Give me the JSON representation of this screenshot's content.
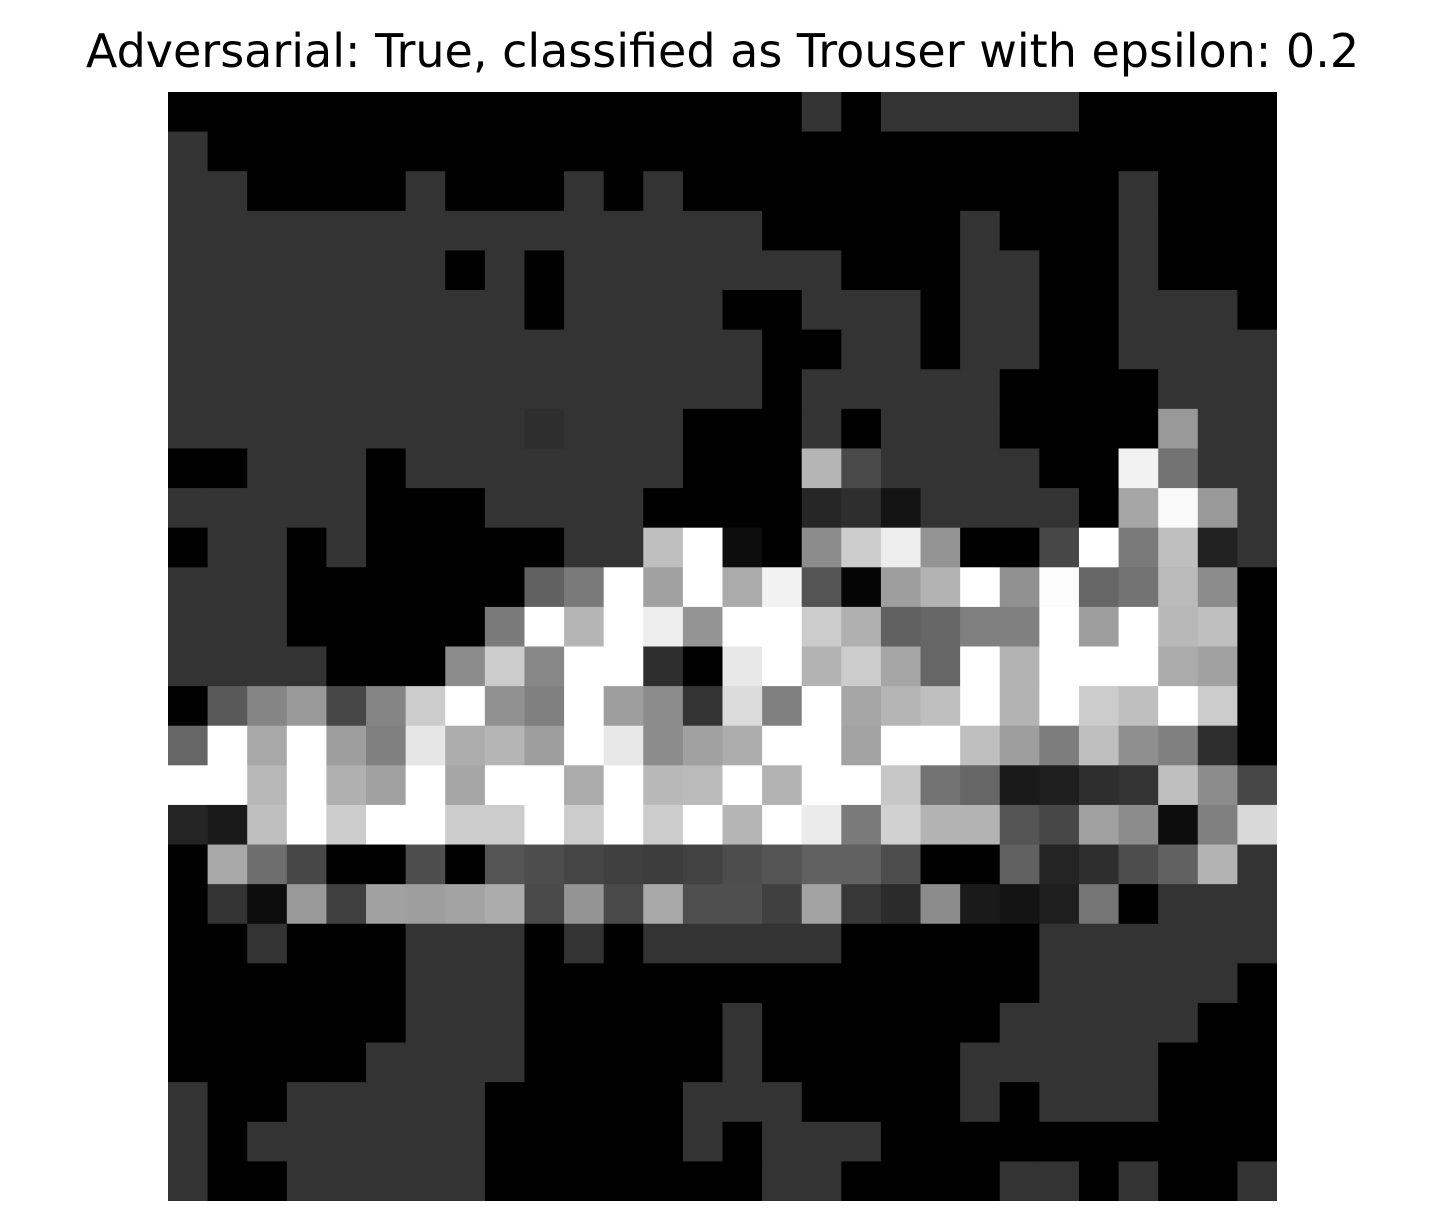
{
  "chart_data": {
    "type": "heatmap",
    "title": "Adversarial: True, classified as Trouser with epsilon: 0.2",
    "colormap": "gray",
    "value_range": [
      0,
      1
    ],
    "axes_visible": false,
    "rows": 28,
    "cols": 28,
    "values": [
      [
        0,
        0,
        0,
        0,
        0,
        0,
        0,
        0,
        0,
        0,
        0,
        0,
        0,
        0,
        0,
        0,
        0.2,
        0,
        0.2,
        0.2,
        0.2,
        0.2,
        0.2,
        0,
        0,
        0,
        0,
        0
      ],
      [
        0.2,
        0,
        0,
        0,
        0,
        0,
        0,
        0,
        0,
        0,
        0,
        0,
        0,
        0,
        0,
        0,
        0,
        0,
        0,
        0,
        0,
        0,
        0,
        0,
        0,
        0,
        0,
        0
      ],
      [
        0.2,
        0.2,
        0,
        0,
        0,
        0,
        0.2,
        0,
        0,
        0,
        0.2,
        0,
        0.2,
        0,
        0,
        0,
        0,
        0,
        0,
        0,
        0,
        0,
        0,
        0,
        0.2,
        0,
        0,
        0
      ],
      [
        0.2,
        0.2,
        0.2,
        0.2,
        0.2,
        0.2,
        0.2,
        0.2,
        0.2,
        0.2,
        0.2,
        0.2,
        0.2,
        0.2,
        0.2,
        0,
        0,
        0,
        0,
        0,
        0.2,
        0,
        0,
        0,
        0.2,
        0,
        0,
        0
      ],
      [
        0.2,
        0.2,
        0.2,
        0.2,
        0.2,
        0.2,
        0.2,
        0,
        0.2,
        0,
        0.2,
        0.2,
        0.2,
        0.2,
        0.2,
        0.2,
        0.2,
        0,
        0,
        0,
        0.2,
        0.2,
        0,
        0,
        0.2,
        0,
        0,
        0
      ],
      [
        0.2,
        0.2,
        0.2,
        0.2,
        0.2,
        0.2,
        0.2,
        0.2,
        0.2,
        0,
        0.2,
        0.2,
        0.2,
        0.2,
        0,
        0,
        0.2,
        0.2,
        0.2,
        0,
        0.2,
        0.2,
        0,
        0,
        0.2,
        0.2,
        0.2,
        0
      ],
      [
        0.2,
        0.2,
        0.2,
        0.2,
        0.2,
        0.2,
        0.2,
        0.2,
        0.2,
        0.2,
        0.2,
        0.2,
        0.2,
        0.2,
        0.2,
        0,
        0,
        0.2,
        0.2,
        0,
        0.2,
        0.2,
        0,
        0,
        0.2,
        0.2,
        0.2,
        0.2
      ],
      [
        0.2,
        0.2,
        0.2,
        0.2,
        0.2,
        0.2,
        0.2,
        0.2,
        0.2,
        0.2,
        0.2,
        0.2,
        0.2,
        0.2,
        0.2,
        0,
        0.2,
        0.2,
        0.2,
        0.2,
        0.2,
        0,
        0,
        0,
        0,
        0.2,
        0.2,
        0.2
      ],
      [
        0.2,
        0.2,
        0.2,
        0.2,
        0.2,
        0.2,
        0.2,
        0.2,
        0.2,
        0.18,
        0.2,
        0.2,
        0.2,
        0,
        0,
        0,
        0.2,
        0,
        0.2,
        0.2,
        0.2,
        0,
        0,
        0,
        0,
        0.6,
        0.2,
        0.2
      ],
      [
        0,
        0,
        0.2,
        0.2,
        0.2,
        0,
        0.2,
        0.2,
        0.2,
        0.2,
        0.2,
        0.2,
        0.2,
        0,
        0,
        0,
        0.71,
        0.29,
        0.2,
        0.2,
        0.2,
        0.2,
        0,
        0,
        0.95,
        0.45,
        0.2,
        0.2
      ],
      [
        0.2,
        0.2,
        0.2,
        0.2,
        0.2,
        0,
        0,
        0,
        0.2,
        0.2,
        0.2,
        0.2,
        0,
        0,
        0,
        0,
        0.15,
        0.18,
        0.08,
        0.2,
        0.2,
        0.2,
        0.2,
        0,
        0.65,
        0.98,
        0.6,
        0.2
      ],
      [
        0,
        0.2,
        0.2,
        0,
        0.2,
        0,
        0,
        0,
        0,
        0,
        0.2,
        0.2,
        0.75,
        1,
        0.05,
        0,
        0.55,
        0.8,
        0.93,
        0.58,
        0,
        0,
        0.28,
        1,
        0.48,
        0.75,
        0.13,
        0.2
      ],
      [
        0.2,
        0.2,
        0.2,
        0,
        0,
        0,
        0,
        0,
        0,
        0.38,
        0.48,
        1,
        0.63,
        1,
        0.67,
        0.95,
        0.33,
        0.02,
        0.62,
        0.7,
        1,
        0.57,
        0.99,
        0.4,
        0.45,
        0.73,
        0.55,
        0
      ],
      [
        0.2,
        0.2,
        0.2,
        0,
        0,
        0,
        0,
        0,
        0.48,
        1,
        0.71,
        1,
        0.93,
        0.58,
        1,
        1,
        0.8,
        0.69,
        0.38,
        0.4,
        0.5,
        0.5,
        1,
        0.62,
        1,
        0.72,
        0.75,
        0
      ],
      [
        0.2,
        0.2,
        0.2,
        0.2,
        0,
        0,
        0,
        0.55,
        0.8,
        0.53,
        1,
        1,
        0.18,
        0,
        0.91,
        1,
        0.7,
        0.8,
        0.65,
        0.4,
        1,
        0.7,
        1,
        1,
        1,
        0.67,
        0.63,
        0
      ],
      [
        0,
        0.35,
        0.52,
        0.6,
        0.28,
        0.52,
        0.8,
        1,
        0.57,
        0.5,
        1,
        0.62,
        0.55,
        0.2,
        0.86,
        0.5,
        1,
        0.65,
        0.71,
        0.75,
        1,
        0.7,
        1,
        0.8,
        0.75,
        1,
        0.8,
        0
      ],
      [
        0.4,
        1,
        0.66,
        1,
        0.62,
        0.5,
        0.9,
        0.68,
        0.71,
        0.62,
        1,
        0.91,
        0.55,
        0.63,
        0.68,
        1,
        1,
        0.64,
        1,
        1,
        0.75,
        0.62,
        0.49,
        0.75,
        0.56,
        0.5,
        0.18,
        0
      ],
      [
        1,
        1,
        0.72,
        1,
        0.69,
        0.63,
        1,
        0.65,
        1,
        1,
        0.67,
        1,
        0.72,
        0.73,
        1,
        0.7,
        1,
        1,
        0.78,
        0.45,
        0.4,
        0.1,
        0.12,
        0.18,
        0.2,
        0.75,
        0.55,
        0.28
      ],
      [
        0.14,
        0.1,
        0.75,
        1,
        0.8,
        1,
        1,
        0.8,
        0.8,
        1,
        0.8,
        1,
        0.8,
        1,
        0.71,
        1,
        0.92,
        0.48,
        0.82,
        0.7,
        0.7,
        0.33,
        0.28,
        0.63,
        0.55,
        0.05,
        0.5,
        0.85
      ],
      [
        0,
        0.66,
        0.43,
        0.28,
        0,
        0,
        0.3,
        0,
        0.33,
        0.3,
        0.27,
        0.25,
        0.24,
        0.26,
        0.3,
        0.33,
        0.38,
        0.38,
        0.3,
        0,
        0,
        0.38,
        0.14,
        0.18,
        0.3,
        0.38,
        0.7,
        0.2
      ],
      [
        0,
        0.2,
        0.05,
        0.6,
        0.25,
        0.63,
        0.62,
        0.64,
        0.67,
        0.29,
        0.58,
        0.29,
        0.66,
        0.31,
        0.31,
        0.25,
        0.64,
        0.22,
        0.17,
        0.55,
        0.1,
        0.08,
        0.12,
        0.46,
        0,
        0.2,
        0.2,
        0.2
      ],
      [
        0,
        0,
        0.2,
        0,
        0,
        0,
        0.2,
        0.2,
        0.2,
        0,
        0.2,
        0,
        0.2,
        0.2,
        0.2,
        0.2,
        0.2,
        0,
        0,
        0,
        0,
        0,
        0.2,
        0.2,
        0.2,
        0.2,
        0.2,
        0.2
      ],
      [
        0,
        0,
        0,
        0,
        0,
        0,
        0.2,
        0.2,
        0.2,
        0,
        0,
        0,
        0,
        0,
        0,
        0,
        0,
        0,
        0,
        0,
        0,
        0,
        0.2,
        0.2,
        0.2,
        0.2,
        0.2,
        0
      ],
      [
        0,
        0,
        0,
        0,
        0,
        0,
        0.2,
        0.2,
        0.2,
        0,
        0,
        0,
        0,
        0,
        0.2,
        0,
        0,
        0,
        0,
        0,
        0,
        0.2,
        0.2,
        0.2,
        0.2,
        0.2,
        0,
        0
      ],
      [
        0,
        0,
        0,
        0,
        0,
        0.2,
        0.2,
        0.2,
        0.2,
        0,
        0,
        0,
        0,
        0,
        0.2,
        0,
        0,
        0,
        0,
        0,
        0.2,
        0.2,
        0.2,
        0.2,
        0.2,
        0,
        0,
        0
      ],
      [
        0.2,
        0,
        0,
        0.2,
        0.2,
        0.2,
        0.2,
        0.2,
        0,
        0,
        0,
        0,
        0,
        0.2,
        0.2,
        0.2,
        0,
        0,
        0,
        0,
        0.2,
        0,
        0.2,
        0.2,
        0.2,
        0,
        0,
        0
      ],
      [
        0.2,
        0,
        0.2,
        0.2,
        0.2,
        0.2,
        0.2,
        0.2,
        0,
        0,
        0,
        0,
        0,
        0.2,
        0,
        0.2,
        0.2,
        0.2,
        0,
        0,
        0,
        0,
        0,
        0,
        0,
        0,
        0,
        0
      ],
      [
        0.2,
        0,
        0,
        0.2,
        0.2,
        0.2,
        0.2,
        0.2,
        0,
        0,
        0,
        0,
        0,
        0,
        0,
        0.2,
        0.2,
        0,
        0,
        0,
        0,
        0.2,
        0.2,
        0,
        0.2,
        0,
        0,
        0.2
      ]
    ]
  }
}
